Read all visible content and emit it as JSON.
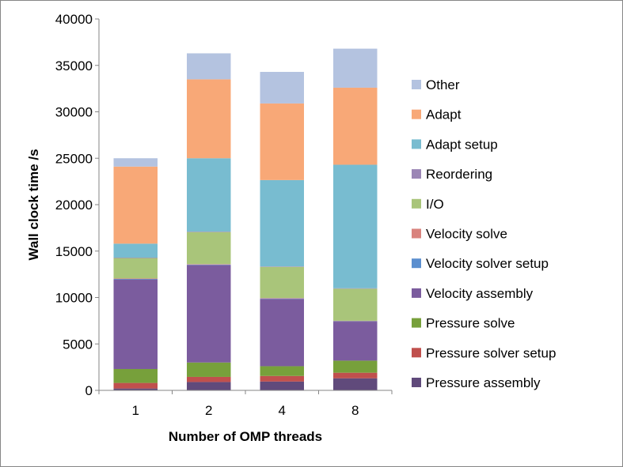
{
  "chart_data": {
    "type": "bar",
    "stacked": true,
    "title": "",
    "xlabel": "Number of OMP threads",
    "ylabel": "Wall clock time /s",
    "categories": [
      "1",
      "2",
      "4",
      "8"
    ],
    "ylim": [
      0,
      40000
    ],
    "yticks": [
      0,
      5000,
      10000,
      15000,
      20000,
      25000,
      30000,
      35000,
      40000
    ],
    "grid": false,
    "legend_position": "right",
    "series": [
      {
        "name": "Pressure assembly",
        "color": "#604A7B",
        "values": [
          200,
          900,
          950,
          1300
        ]
      },
      {
        "name": "Pressure solver setup",
        "color": "#C0504D",
        "values": [
          600,
          550,
          600,
          600
        ]
      },
      {
        "name": "Pressure solve",
        "color": "#77A03B",
        "values": [
          1500,
          1550,
          1050,
          1300
        ]
      },
      {
        "name": "Velocity assembly",
        "color": "#7B5C9E",
        "values": [
          9650,
          10500,
          7250,
          4200
        ]
      },
      {
        "name": "Velocity solver setup",
        "color": "#5B8FCF",
        "values": [
          50,
          50,
          50,
          50
        ]
      },
      {
        "name": "Velocity solve",
        "color": "#D9837E",
        "values": [
          50,
          50,
          50,
          50
        ]
      },
      {
        "name": "I/O",
        "color": "#A9C57A",
        "values": [
          2200,
          3450,
          3350,
          3450
        ]
      },
      {
        "name": "Reordering",
        "color": "#9B86B5",
        "values": [
          50,
          50,
          50,
          50
        ]
      },
      {
        "name": "Adapt setup",
        "color": "#78BCD0",
        "values": [
          1500,
          7900,
          9300,
          13300
        ]
      },
      {
        "name": "Adapt",
        "color": "#F8A877",
        "values": [
          8300,
          8500,
          8250,
          8300
        ]
      },
      {
        "name": "Other",
        "color": "#B4C3E0",
        "values": [
          900,
          2800,
          3400,
          4200
        ]
      }
    ]
  }
}
